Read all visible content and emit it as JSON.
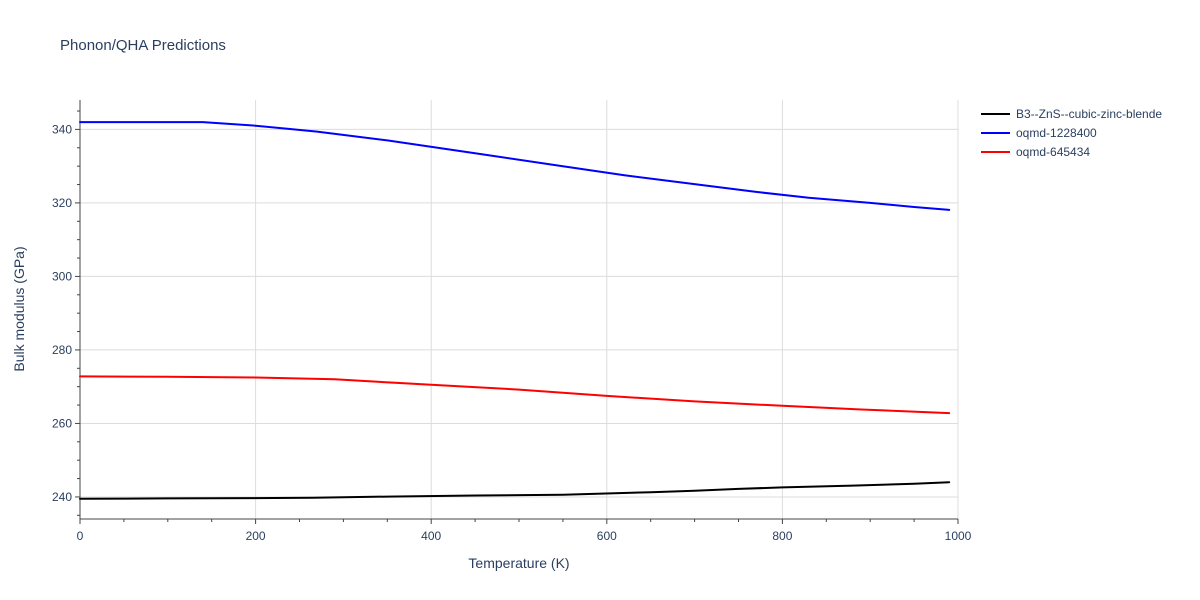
{
  "chart_data": {
    "type": "line",
    "title": "Phonon/QHA Predictions",
    "xlabel": "Temperature (K)",
    "ylabel": "Bulk modulus (GPa)",
    "xlim": [
      0,
      1000
    ],
    "ylim": [
      234,
      348
    ],
    "xticks": [
      0,
      200,
      400,
      600,
      800,
      1000
    ],
    "yticks": [
      240,
      260,
      280,
      300,
      320,
      340
    ],
    "x_minor_ticks": [
      50,
      100,
      150,
      250,
      300,
      350,
      450,
      500,
      550,
      650,
      700,
      750,
      850,
      900,
      950
    ],
    "y_minor_ticks": [
      235,
      245,
      250,
      255,
      265,
      270,
      275,
      285,
      290,
      295,
      305,
      310,
      315,
      325,
      330,
      335,
      345
    ],
    "grid": true,
    "legend_position": "top-right, outside plot",
    "series": [
      {
        "name": "B3--ZnS--cubic-zinc-blende",
        "color": "#000000",
        "x": [
          0,
          100,
          200,
          265,
          350,
          450,
          550,
          650,
          700,
          750,
          800,
          880,
          950,
          990
        ],
        "y": [
          239.5,
          239.6,
          239.7,
          239.8,
          240.1,
          240.4,
          240.6,
          241.3,
          241.7,
          242.2,
          242.6,
          243.1,
          243.6,
          244.0
        ]
      },
      {
        "name": "oqmd-1228400",
        "color": "#0000ff",
        "x": [
          0,
          70,
          140,
          200,
          270,
          350,
          450,
          550,
          620,
          710,
          770,
          830,
          900,
          950,
          990
        ],
        "y": [
          342.0,
          342.0,
          342.0,
          341.0,
          339.4,
          337.0,
          333.5,
          330.0,
          327.5,
          324.8,
          323.0,
          321.4,
          320.0,
          318.9,
          318.1
        ]
      },
      {
        "name": "oqmd-645434",
        "color": "#ff0000",
        "x": [
          0,
          100,
          200,
          290,
          400,
          500,
          600,
          700,
          800,
          890,
          990
        ],
        "y": [
          272.8,
          272.7,
          272.5,
          272.0,
          270.5,
          269.2,
          267.5,
          266.0,
          264.8,
          263.8,
          262.8
        ]
      }
    ]
  }
}
